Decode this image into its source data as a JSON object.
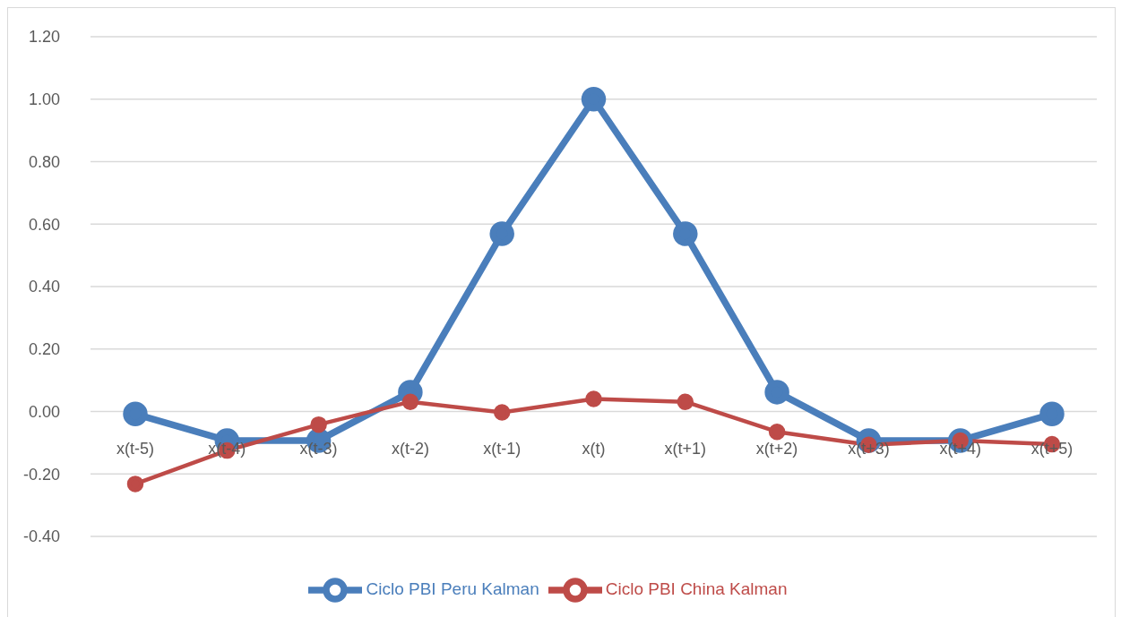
{
  "chart_data": {
    "type": "line",
    "categories": [
      "x(t-5)",
      "x(t-4)",
      "x(t-3)",
      "x(t-2)",
      "x(t-1)",
      "x(t)",
      "x(t+1)",
      "x(t+2)",
      "x(t+3)",
      "x(t+4)",
      "x(t+5)"
    ],
    "series": [
      {
        "name": "Ciclo PBI Peru Kalman",
        "color": "#4a7ebb",
        "values": [
          -0.008,
          -0.093,
          -0.093,
          0.062,
          0.569,
          1.0,
          0.569,
          0.062,
          -0.093,
          -0.093,
          -0.008
        ]
      },
      {
        "name": "Ciclo PBI China Kalman",
        "color": "#be4b48",
        "values": [
          -0.232,
          -0.125,
          -0.042,
          0.031,
          -0.003,
          0.04,
          0.031,
          -0.065,
          -0.107,
          -0.093,
          -0.105
        ]
      }
    ],
    "ylim": [
      -0.4,
      1.2
    ],
    "yticks": [
      {
        "value": -0.4,
        "label": "-0.40"
      },
      {
        "value": -0.2,
        "label": "-0.20"
      },
      {
        "value": 0,
        "label": "0.00"
      },
      {
        "value": 0.2,
        "label": "0.20"
      },
      {
        "value": 0.4,
        "label": "0.40"
      },
      {
        "value": 0.6,
        "label": "0.60"
      },
      {
        "value": 0.8,
        "label": "0.80"
      },
      {
        "value": 1,
        "label": "1.00"
      },
      {
        "value": 1.2,
        "label": "1.20"
      }
    ],
    "grid": "y",
    "legend": "bottom",
    "marker": "circle",
    "line_style": "solid"
  }
}
